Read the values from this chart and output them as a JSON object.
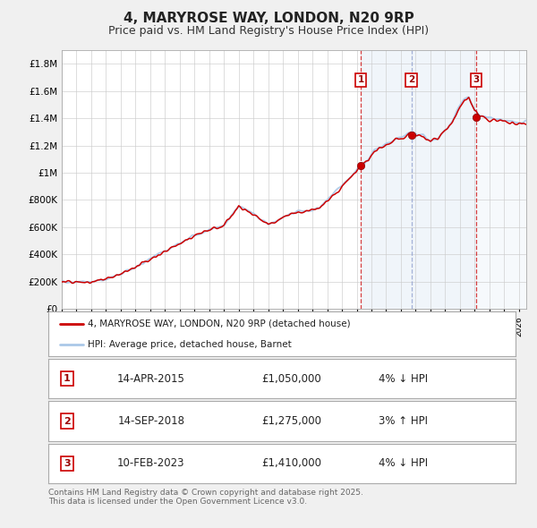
{
  "title": "4, MARYROSE WAY, LONDON, N20 9RP",
  "subtitle": "Price paid vs. HM Land Registry's House Price Index (HPI)",
  "title_fontsize": 11,
  "subtitle_fontsize": 9,
  "hpi_color": "#aac8e8",
  "price_color": "#cc0000",
  "background_color": "#f0f0f0",
  "plot_bg_color": "#ffffff",
  "grid_color": "#cccccc",
  "ylim": [
    0,
    1900000
  ],
  "xlim_start": 1995.0,
  "xlim_end": 2026.5,
  "sale_dates": [
    2015.286,
    2018.708,
    2023.11
  ],
  "sale_prices": [
    1050000,
    1275000,
    1410000
  ],
  "sale_labels": [
    "1",
    "2",
    "3"
  ],
  "sale_date_strings": [
    "14-APR-2015",
    "14-SEP-2018",
    "10-FEB-2023"
  ],
  "sale_price_strings": [
    "£1,050,000",
    "£1,275,000",
    "£1,410,000"
  ],
  "sale_hpi_strings": [
    "4% ↓ HPI",
    "3% ↑ HPI",
    "4% ↓ HPI"
  ],
  "legend_price_label": "4, MARYROSE WAY, LONDON, N20 9RP (detached house)",
  "legend_hpi_label": "HPI: Average price, detached house, Barnet",
  "footer_text": "Contains HM Land Registry data © Crown copyright and database right 2025.\nThis data is licensed under the Open Government Licence v3.0.",
  "ytick_labels": [
    "£0",
    "£200K",
    "£400K",
    "£600K",
    "£800K",
    "£1M",
    "£1.2M",
    "£1.4M",
    "£1.6M",
    "£1.8M"
  ],
  "ytick_values": [
    0,
    200000,
    400000,
    600000,
    800000,
    1000000,
    1200000,
    1400000,
    1600000,
    1800000
  ],
  "hpi_anchor_years": [
    1995,
    1996,
    1997,
    1998,
    1999,
    2000,
    2001,
    2002,
    2003,
    2004,
    2005,
    2006,
    2007,
    2007.5,
    2008,
    2009,
    2009.5,
    2010,
    2010.5,
    2011,
    2012,
    2012.5,
    2013,
    2014,
    2014.5,
    2015.0,
    2015.3,
    2015.8,
    2016.2,
    2016.7,
    2017,
    2017.5,
    2018,
    2018.3,
    2018.7,
    2019.0,
    2019.5,
    2020.0,
    2020.5,
    2021.0,
    2021.5,
    2022.0,
    2022.3,
    2022.6,
    2023.0,
    2023.3,
    2023.6,
    2024.0,
    2024.5,
    2025.0,
    2026.0
  ],
  "hpi_anchor_vals": [
    200000,
    200000,
    200000,
    215000,
    255000,
    305000,
    370000,
    425000,
    480000,
    540000,
    580000,
    620000,
    755000,
    730000,
    695000,
    625000,
    640000,
    675000,
    700000,
    715000,
    720000,
    745000,
    800000,
    900000,
    960000,
    1020000,
    1055000,
    1100000,
    1160000,
    1190000,
    1210000,
    1240000,
    1260000,
    1270000,
    1295000,
    1285000,
    1275000,
    1235000,
    1250000,
    1310000,
    1380000,
    1500000,
    1540000,
    1555000,
    1460000,
    1430000,
    1420000,
    1400000,
    1390000,
    1380000,
    1365000
  ]
}
